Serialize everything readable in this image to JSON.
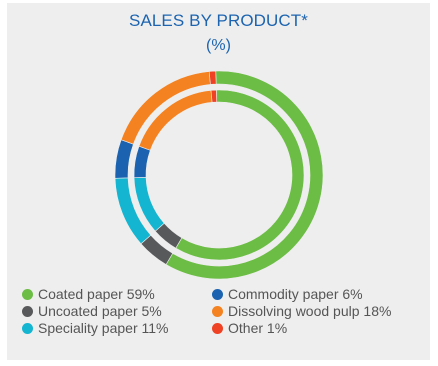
{
  "chart_data": {
    "type": "pie",
    "title": "SALES BY PRODUCT*",
    "subtitle": "(%)",
    "categories": [
      "Coated paper",
      "Commodity paper",
      "Uncoated paper",
      "Dissolving wood pulp",
      "Speciality paper",
      "Other"
    ],
    "values": [
      59,
      6,
      5,
      18,
      11,
      1
    ],
    "colors": [
      "#6cbd45",
      "#1b63b0",
      "#58595b",
      "#f58220",
      "#14b5d0",
      "#ef4123"
    ],
    "legend_placement": "bottom",
    "legend": [
      "Coated paper 59%",
      "Commodity paper 6%",
      "Uncoated paper 5%",
      "Dissolving wood pulp 18%",
      "Speciality paper 11%",
      "Other 1%"
    ]
  }
}
